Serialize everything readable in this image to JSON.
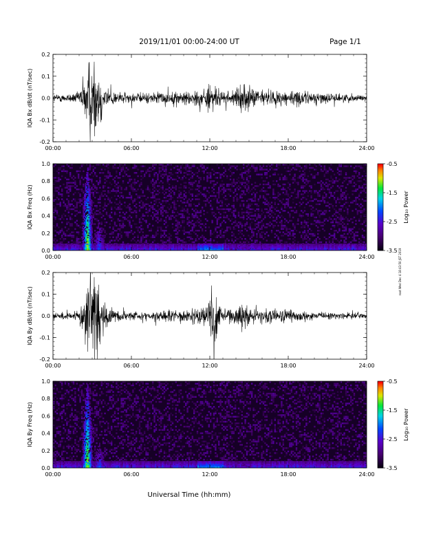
{
  "header": {
    "title": "2019/11/01  00:00-24:00 UT",
    "page": "Page 1/1"
  },
  "footer": {
    "xlabel": "Universal Time (hh:mm)"
  },
  "side_note": "root Wed Dec 4 18:43:50 JST 2019",
  "colorbar": {
    "label": "Log₁₀ Power",
    "ticks": [
      "-0.5",
      "-1.5",
      "-2.5",
      "-3.5"
    ],
    "range": [
      -3.5,
      -0.5
    ]
  },
  "x_ticks": [
    "00:00",
    "06:00",
    "12:00",
    "18:00",
    "24:00"
  ],
  "chart_data": [
    {
      "type": "line",
      "title": "",
      "ylabel": "IQA Bx dB/dt (nT/sec)",
      "xlabel": "",
      "xlim": [
        0,
        24
      ],
      "ylim": [
        -0.2,
        0.2
      ],
      "y_ticks": [
        "0.2",
        "0.1",
        "0.0",
        "-0.1",
        "-0.2"
      ],
      "envelope": {
        "x": [
          0,
          1,
          2,
          2.4,
          2.7,
          3.0,
          3.3,
          3.6,
          4.0,
          4.5,
          5,
          6,
          7,
          8,
          9,
          10,
          11,
          11.7,
          12.0,
          12.3,
          12.8,
          13,
          14,
          14.4,
          14.8,
          15.2,
          16,
          17,
          18,
          19,
          20,
          21,
          22,
          23,
          24
        ],
        "amplitude": [
          0.02,
          0.02,
          0.03,
          0.12,
          0.2,
          0.2,
          0.2,
          0.14,
          0.06,
          0.04,
          0.03,
          0.025,
          0.025,
          0.03,
          0.03,
          0.035,
          0.04,
          0.05,
          0.08,
          0.06,
          0.04,
          0.03,
          0.04,
          0.06,
          0.07,
          0.05,
          0.04,
          0.035,
          0.04,
          0.035,
          0.03,
          0.025,
          0.02,
          0.02,
          0.015
        ]
      }
    },
    {
      "type": "heatmap",
      "title": "",
      "ylabel": "IQA Bx Freq (Hz)",
      "xlabel": "",
      "xlim": [
        0,
        24
      ],
      "ylim": [
        0,
        1.0
      ],
      "y_ticks": [
        "1.0",
        "0.8",
        "0.6",
        "0.4",
        "0.2",
        "0.0"
      ],
      "zlabel": "Log₁₀ Power",
      "zlim": [
        -3.5,
        -0.5
      ],
      "features": [
        {
          "x_center": 2.6,
          "x_width": 0.25,
          "y_top": 1.0,
          "peak": -0.8
        },
        {
          "x_center": 3.5,
          "x_width": 0.3,
          "y_top": 0.35,
          "peak": -2.0
        },
        {
          "x_center": 14.5,
          "x_width": 0.8,
          "y_top": 0.06,
          "peak": -2.4
        }
      ]
    },
    {
      "type": "line",
      "title": "",
      "ylabel": "IQA By dB/dt (nT/sec)",
      "xlabel": "",
      "xlim": [
        0,
        24
      ],
      "ylim": [
        -0.2,
        0.2
      ],
      "y_ticks": [
        "0.2",
        "0.1",
        "0.0",
        "-0.1",
        "-0.2"
      ],
      "envelope": {
        "x": [
          0,
          1,
          2,
          2.4,
          2.7,
          3.0,
          3.3,
          3.6,
          4.0,
          4.5,
          5,
          6,
          7,
          8,
          9,
          10,
          11,
          11.7,
          12.0,
          12.4,
          12.8,
          13,
          14,
          14.4,
          14.8,
          15.2,
          16,
          17,
          18,
          19,
          20,
          21,
          22,
          23,
          24
        ],
        "amplitude": [
          0.015,
          0.015,
          0.025,
          0.13,
          0.2,
          0.2,
          0.2,
          0.15,
          0.07,
          0.04,
          0.03,
          0.02,
          0.02,
          0.025,
          0.03,
          0.03,
          0.035,
          0.05,
          0.11,
          0.19,
          0.05,
          0.03,
          0.04,
          0.07,
          0.06,
          0.04,
          0.035,
          0.03,
          0.03,
          0.025,
          0.02,
          0.02,
          0.015,
          0.015,
          0.015
        ]
      }
    },
    {
      "type": "heatmap",
      "title": "",
      "ylabel": "IQA By Freq (Hz)",
      "xlabel": "",
      "xlim": [
        0,
        24
      ],
      "ylim": [
        0,
        1.0
      ],
      "y_ticks": [
        "1.0",
        "0.8",
        "0.6",
        "0.4",
        "0.2",
        "0.0"
      ],
      "zlabel": "Log₁₀ Power",
      "zlim": [
        -3.5,
        -0.5
      ],
      "features": [
        {
          "x_center": 2.6,
          "x_width": 0.25,
          "y_top": 1.0,
          "peak": -0.8
        },
        {
          "x_center": 3.5,
          "x_width": 0.3,
          "y_top": 0.3,
          "peak": -2.0
        },
        {
          "x_center": 14.5,
          "x_width": 0.8,
          "y_top": 0.06,
          "peak": -2.4
        }
      ]
    }
  ]
}
